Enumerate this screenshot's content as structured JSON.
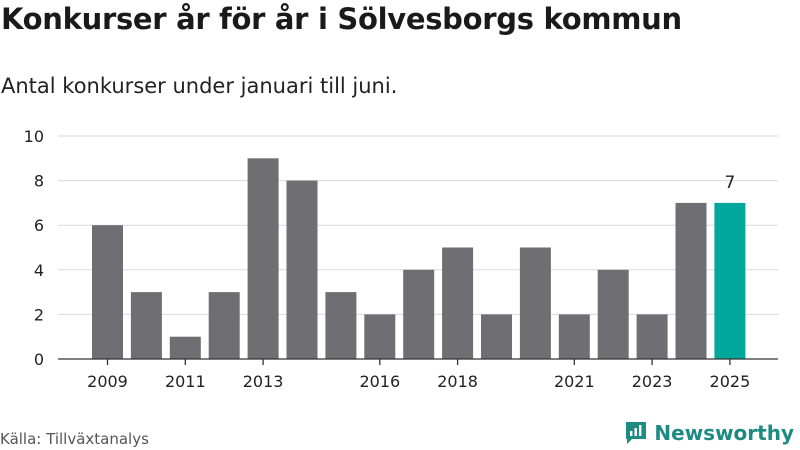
{
  "header": {
    "title": "Konkurser år för år i Sölvesborgs kommun",
    "subtitle": "Antal konkurser under januari till juni."
  },
  "footer": {
    "source": "Källa: Tillväxtanalys",
    "brand": "Newsworthy",
    "brand_icon": "newsworthy-logo-icon"
  },
  "colors": {
    "bar": "#6f6e73",
    "highlight": "#00a89c",
    "grid": "#d9d9d9",
    "axis": "#333333",
    "brand": "#1e8b82"
  },
  "chart_data": {
    "type": "bar",
    "categories": [
      "2009",
      "2010",
      "2011",
      "2012",
      "2013",
      "2014",
      "2015",
      "2016",
      "2017",
      "2018",
      "2019",
      "2020",
      "2021",
      "2022",
      "2023",
      "2024",
      "2025"
    ],
    "values": [
      6,
      3,
      1,
      3,
      9,
      8,
      3,
      2,
      4,
      5,
      2,
      5,
      2,
      4,
      2,
      7,
      7
    ],
    "tick_labels": [
      "2009",
      "2011",
      "2013",
      "2016",
      "2018",
      "2021",
      "2023",
      "2025"
    ],
    "y_ticks": [
      0,
      2,
      4,
      6,
      8,
      10
    ],
    "ylim": [
      0,
      10
    ],
    "highlight_category": "2025",
    "data_labels": [
      {
        "category": "2025",
        "text": "7"
      }
    ],
    "grid": true,
    "title": "Konkurser år för år i Sölvesborgs kommun",
    "xlabel": "",
    "ylabel": ""
  }
}
